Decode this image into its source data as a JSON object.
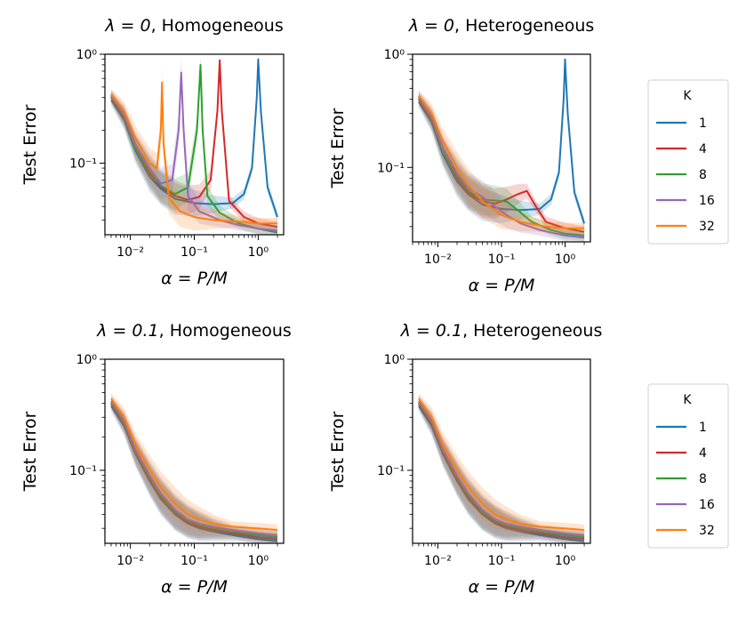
{
  "chart_data": [
    {
      "type": "line",
      "title_prefix": "λ = 0",
      "title_suffix": ", Homogeneous",
      "xlabel": "α = P/M",
      "ylabel": "Test Error",
      "xscale": "log",
      "yscale": "log",
      "xlim": [
        0.004,
        2.5
      ],
      "ylim": [
        0.022,
        1.0
      ],
      "xticks": [
        "10⁻²",
        "10⁻¹",
        "10⁰"
      ],
      "yticks": [
        "10⁻¹",
        "10⁰"
      ],
      "series": [
        {
          "name": "1",
          "color": "#1f77b4",
          "x": [
            0.005,
            0.008,
            0.012,
            0.02,
            0.03,
            0.05,
            0.1,
            0.2,
            0.4,
            0.6,
            0.8,
            0.95,
            1.0,
            1.1,
            1.4,
            2.0
          ],
          "y": [
            0.38,
            0.25,
            0.13,
            0.075,
            0.058,
            0.047,
            0.043,
            0.042,
            0.043,
            0.052,
            0.09,
            0.4,
            0.9,
            0.3,
            0.06,
            0.032
          ]
        },
        {
          "name": "4",
          "color": "#d62728",
          "x": [
            0.005,
            0.008,
            0.012,
            0.02,
            0.03,
            0.05,
            0.08,
            0.12,
            0.18,
            0.23,
            0.25,
            0.27,
            0.35,
            0.6,
            1.0,
            2.0
          ],
          "y": [
            0.4,
            0.26,
            0.14,
            0.08,
            0.06,
            0.05,
            0.046,
            0.049,
            0.07,
            0.3,
            0.88,
            0.3,
            0.045,
            0.032,
            0.028,
            0.026
          ]
        },
        {
          "name": "8",
          "color": "#2ca02c",
          "x": [
            0.005,
            0.008,
            0.012,
            0.02,
            0.03,
            0.05,
            0.08,
            0.11,
            0.125,
            0.135,
            0.16,
            0.25,
            0.5,
            1.0,
            2.0
          ],
          "y": [
            0.41,
            0.27,
            0.14,
            0.085,
            0.062,
            0.052,
            0.06,
            0.2,
            0.8,
            0.2,
            0.05,
            0.035,
            0.028,
            0.025,
            0.023
          ]
        },
        {
          "name": "16",
          "color": "#9467bd",
          "x": [
            0.005,
            0.008,
            0.012,
            0.02,
            0.03,
            0.045,
            0.057,
            0.0625,
            0.068,
            0.08,
            0.12,
            0.25,
            0.5,
            1.0,
            2.0
          ],
          "y": [
            0.42,
            0.28,
            0.15,
            0.09,
            0.065,
            0.07,
            0.2,
            0.68,
            0.2,
            0.05,
            0.036,
            0.03,
            0.027,
            0.025,
            0.024
          ]
        },
        {
          "name": "32",
          "color": "#ff7f0e",
          "x": [
            0.005,
            0.008,
            0.012,
            0.02,
            0.026,
            0.03,
            0.0313,
            0.033,
            0.04,
            0.06,
            0.1,
            0.2,
            0.5,
            1.0,
            2.0
          ],
          "y": [
            0.43,
            0.3,
            0.17,
            0.1,
            0.09,
            0.2,
            0.55,
            0.15,
            0.048,
            0.036,
            0.032,
            0.03,
            0.029,
            0.028,
            0.028
          ]
        }
      ]
    },
    {
      "type": "line",
      "title_prefix": "λ = 0",
      "title_suffix": ", Heterogeneous",
      "xlabel": "α = P/M",
      "ylabel": "Test Error",
      "xscale": "log",
      "yscale": "log",
      "xlim": [
        0.004,
        2.5
      ],
      "ylim": [
        0.022,
        1.0
      ],
      "xticks": [
        "10⁻²",
        "10⁻¹",
        "10⁰"
      ],
      "yticks": [
        "10⁻¹",
        "10⁰"
      ],
      "series": [
        {
          "name": "1",
          "color": "#1f77b4",
          "x": [
            0.005,
            0.008,
            0.012,
            0.02,
            0.03,
            0.05,
            0.1,
            0.2,
            0.4,
            0.6,
            0.8,
            0.95,
            1.0,
            1.1,
            1.4,
            2.0
          ],
          "y": [
            0.38,
            0.25,
            0.13,
            0.075,
            0.058,
            0.047,
            0.043,
            0.042,
            0.043,
            0.052,
            0.09,
            0.4,
            0.9,
            0.3,
            0.06,
            0.032
          ]
        },
        {
          "name": "4",
          "color": "#d62728",
          "x": [
            0.005,
            0.008,
            0.012,
            0.02,
            0.03,
            0.05,
            0.08,
            0.12,
            0.18,
            0.25,
            0.35,
            0.5,
            1.0,
            2.0
          ],
          "y": [
            0.4,
            0.26,
            0.14,
            0.08,
            0.06,
            0.05,
            0.048,
            0.052,
            0.058,
            0.062,
            0.045,
            0.033,
            0.029,
            0.027
          ]
        },
        {
          "name": "8",
          "color": "#2ca02c",
          "x": [
            0.005,
            0.008,
            0.012,
            0.02,
            0.03,
            0.05,
            0.08,
            0.12,
            0.18,
            0.3,
            0.6,
            1.0,
            2.0
          ],
          "y": [
            0.41,
            0.27,
            0.14,
            0.085,
            0.062,
            0.052,
            0.051,
            0.05,
            0.042,
            0.033,
            0.028,
            0.026,
            0.025
          ]
        },
        {
          "name": "16",
          "color": "#9467bd",
          "x": [
            0.005,
            0.008,
            0.012,
            0.02,
            0.03,
            0.05,
            0.08,
            0.12,
            0.2,
            0.4,
            1.0,
            2.0
          ],
          "y": [
            0.42,
            0.28,
            0.15,
            0.09,
            0.065,
            0.055,
            0.045,
            0.038,
            0.032,
            0.028,
            0.025,
            0.024
          ]
        },
        {
          "name": "32",
          "color": "#ff7f0e",
          "x": [
            0.005,
            0.008,
            0.012,
            0.02,
            0.03,
            0.05,
            0.1,
            0.2,
            0.5,
            1.0,
            2.0
          ],
          "y": [
            0.43,
            0.3,
            0.17,
            0.1,
            0.07,
            0.05,
            0.038,
            0.033,
            0.03,
            0.029,
            0.029
          ]
        }
      ]
    },
    {
      "type": "line",
      "title_prefix": "λ = 0.1",
      "title_suffix": ", Homogeneous",
      "xlabel": "α = P/M",
      "ylabel": "Test Error",
      "xscale": "log",
      "yscale": "log",
      "xlim": [
        0.004,
        2.5
      ],
      "ylim": [
        0.022,
        1.0
      ],
      "xticks": [
        "10⁻²",
        "10⁻¹",
        "10⁰"
      ],
      "yticks": [
        "10⁻¹",
        "10⁰"
      ],
      "series": [
        {
          "name": "1",
          "color": "#1f77b4",
          "x": [
            0.005,
            0.008,
            0.012,
            0.02,
            0.03,
            0.05,
            0.08,
            0.12,
            0.2,
            0.4,
            1.0,
            2.0
          ],
          "y": [
            0.38,
            0.25,
            0.14,
            0.08,
            0.055,
            0.04,
            0.033,
            0.03,
            0.028,
            0.026,
            0.024,
            0.023
          ]
        },
        {
          "name": "4",
          "color": "#d62728",
          "x": [
            0.005,
            0.008,
            0.012,
            0.02,
            0.03,
            0.05,
            0.08,
            0.12,
            0.2,
            0.4,
            1.0,
            2.0
          ],
          "y": [
            0.4,
            0.26,
            0.145,
            0.083,
            0.057,
            0.041,
            0.034,
            0.031,
            0.029,
            0.027,
            0.025,
            0.024
          ]
        },
        {
          "name": "8",
          "color": "#2ca02c",
          "x": [
            0.005,
            0.008,
            0.012,
            0.02,
            0.03,
            0.05,
            0.08,
            0.12,
            0.2,
            0.4,
            1.0,
            2.0
          ],
          "y": [
            0.41,
            0.27,
            0.15,
            0.086,
            0.059,
            0.042,
            0.035,
            0.032,
            0.03,
            0.028,
            0.026,
            0.025
          ]
        },
        {
          "name": "16",
          "color": "#9467bd",
          "x": [
            0.005,
            0.008,
            0.012,
            0.02,
            0.03,
            0.05,
            0.08,
            0.12,
            0.2,
            0.4,
            1.0,
            2.0
          ],
          "y": [
            0.42,
            0.28,
            0.155,
            0.09,
            0.062,
            0.044,
            0.036,
            0.033,
            0.031,
            0.029,
            0.027,
            0.026
          ]
        },
        {
          "name": "32",
          "color": "#ff7f0e",
          "x": [
            0.005,
            0.008,
            0.012,
            0.02,
            0.03,
            0.05,
            0.08,
            0.12,
            0.2,
            0.4,
            1.0,
            2.0
          ],
          "y": [
            0.44,
            0.3,
            0.17,
            0.1,
            0.07,
            0.05,
            0.04,
            0.036,
            0.033,
            0.031,
            0.03,
            0.029
          ]
        }
      ]
    },
    {
      "type": "line",
      "title_prefix": "λ = 0.1",
      "title_suffix": ", Heterogeneous",
      "xlabel": "α = P/M",
      "ylabel": "Test Error",
      "xscale": "log",
      "yscale": "log",
      "xlim": [
        0.004,
        2.5
      ],
      "ylim": [
        0.022,
        1.0
      ],
      "xticks": [
        "10⁻²",
        "10⁻¹",
        "10⁰"
      ],
      "yticks": [
        "10⁻¹",
        "10⁰"
      ],
      "series": [
        {
          "name": "1",
          "color": "#1f77b4",
          "x": [
            0.005,
            0.008,
            0.012,
            0.02,
            0.03,
            0.05,
            0.08,
            0.12,
            0.2,
            0.4,
            1.0,
            2.0
          ],
          "y": [
            0.38,
            0.25,
            0.14,
            0.08,
            0.055,
            0.04,
            0.033,
            0.03,
            0.028,
            0.026,
            0.024,
            0.023
          ]
        },
        {
          "name": "4",
          "color": "#d62728",
          "x": [
            0.005,
            0.008,
            0.012,
            0.02,
            0.03,
            0.05,
            0.08,
            0.12,
            0.2,
            0.4,
            1.0,
            2.0
          ],
          "y": [
            0.4,
            0.26,
            0.145,
            0.083,
            0.057,
            0.041,
            0.034,
            0.031,
            0.029,
            0.027,
            0.025,
            0.024
          ]
        },
        {
          "name": "8",
          "color": "#2ca02c",
          "x": [
            0.005,
            0.008,
            0.012,
            0.02,
            0.03,
            0.05,
            0.08,
            0.12,
            0.2,
            0.4,
            1.0,
            2.0
          ],
          "y": [
            0.41,
            0.27,
            0.15,
            0.086,
            0.059,
            0.042,
            0.035,
            0.032,
            0.03,
            0.028,
            0.026,
            0.025
          ]
        },
        {
          "name": "16",
          "color": "#9467bd",
          "x": [
            0.005,
            0.008,
            0.012,
            0.02,
            0.03,
            0.05,
            0.08,
            0.12,
            0.2,
            0.4,
            1.0,
            2.0
          ],
          "y": [
            0.42,
            0.28,
            0.155,
            0.09,
            0.062,
            0.044,
            0.036,
            0.033,
            0.031,
            0.029,
            0.027,
            0.026
          ]
        },
        {
          "name": "32",
          "color": "#ff7f0e",
          "x": [
            0.005,
            0.008,
            0.012,
            0.02,
            0.03,
            0.05,
            0.08,
            0.12,
            0.2,
            0.4,
            1.0,
            2.0
          ],
          "y": [
            0.44,
            0.3,
            0.17,
            0.1,
            0.07,
            0.05,
            0.04,
            0.036,
            0.033,
            0.031,
            0.03,
            0.029
          ]
        }
      ]
    }
  ],
  "legend": {
    "title": "K",
    "items": [
      {
        "label": "1",
        "color": "#1f77b4"
      },
      {
        "label": "4",
        "color": "#d62728"
      },
      {
        "label": "8",
        "color": "#2ca02c"
      },
      {
        "label": "16",
        "color": "#9467bd"
      },
      {
        "label": "32",
        "color": "#ff7f0e"
      }
    ]
  }
}
